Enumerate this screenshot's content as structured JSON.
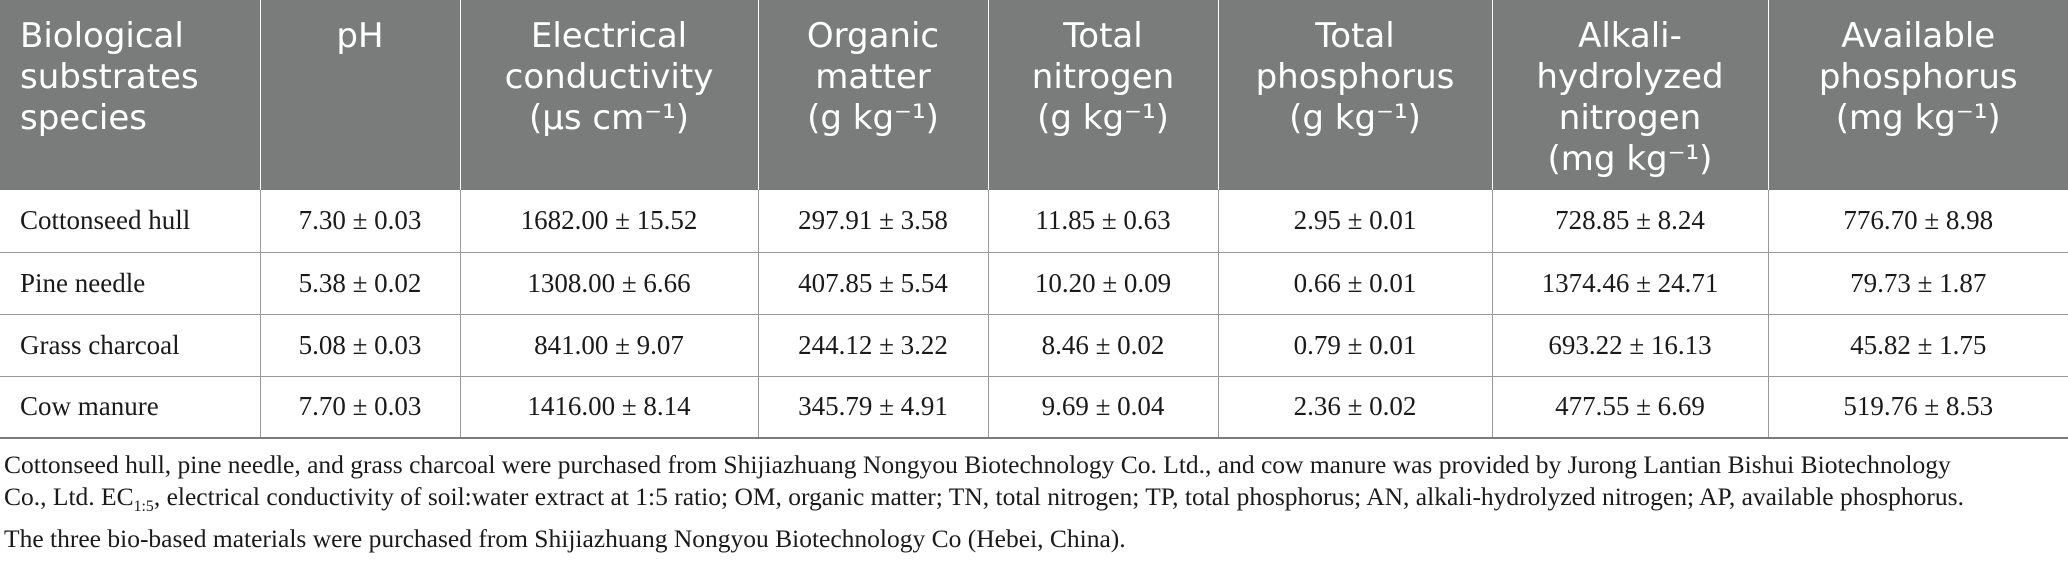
{
  "table": {
    "headers": [
      "Biological substrates species",
      "pH",
      "Electrical conductivity (μs cm⁻¹)",
      "Organic matter (g kg⁻¹)",
      "Total nitrogen (g kg⁻¹)",
      "Total phosphorus (g kg⁻¹)",
      "Alkali-hydrolyzed nitrogen (mg kg⁻¹)",
      "Available phosphorus (mg kg⁻¹)"
    ],
    "header_lines": [
      [
        "Biological",
        "substrates",
        "species"
      ],
      [
        "pH"
      ],
      [
        "Electrical",
        "conductivity",
        "(μs cm⁻¹)"
      ],
      [
        "Organic",
        "matter",
        "(g kg⁻¹)"
      ],
      [
        "Total",
        "nitrogen",
        "(g kg⁻¹)"
      ],
      [
        "Total",
        "phosphorus",
        "(g kg⁻¹)"
      ],
      [
        "Alkali-",
        "hydrolyzed",
        "nitrogen",
        "(mg kg⁻¹)"
      ],
      [
        "Available",
        "phosphorus",
        "(mg kg⁻¹)"
      ]
    ],
    "rows": [
      [
        "Cottonseed hull",
        "7.30 ± 0.03",
        "1682.00 ± 15.52",
        "297.91 ± 3.58",
        "11.85 ± 0.63",
        "2.95 ± 0.01",
        "728.85 ± 8.24",
        "776.70 ± 8.98"
      ],
      [
        "Pine needle",
        "5.38 ± 0.02",
        "1308.00 ± 6.66",
        "407.85 ± 5.54",
        "10.20 ± 0.09",
        "0.66 ± 0.01",
        "1374.46 ± 24.71",
        "79.73 ± 1.87"
      ],
      [
        "Grass charcoal",
        "5.08 ± 0.03",
        "841.00 ± 9.07",
        "244.12 ± 3.22",
        "8.46 ± 0.02",
        "0.79 ± 0.01",
        "693.22 ± 16.13",
        "45.82 ± 1.75"
      ],
      [
        "Cow manure",
        "7.70 ± 0.03",
        "1416.00 ± 8.14",
        "345.79 ± 4.91",
        "9.69 ± 0.04",
        "2.36 ± 0.02",
        "477.55 ± 6.69",
        "519.76 ± 8.53"
      ]
    ]
  },
  "footnote": {
    "line1": "Cottonseed hull, pine needle, and grass charcoal were purchased from Shijiazhuang Nongyou Biotechnology Co. Ltd., and cow manure was provided by Jurong Lantian Bishui Biotechnology",
    "line2_a": "Co., Ltd. EC",
    "line2_sub": "1:5",
    "line2_b": ", electrical conductivity of soil:water extract at 1:5 ratio; OM, organic matter; TN, total nitrogen; TP, total phosphorus; AN, alkali-hydrolyzed nitrogen; AP, available phosphorus.",
    "line3": "The three bio-based materials were purchased from Shijiazhuang Nongyou Biotechnology Co (Hebei, China)."
  },
  "colors": {
    "header_bg": "#7a7c7b",
    "header_text": "#ffffff",
    "grid": "#9a9a9a"
  }
}
